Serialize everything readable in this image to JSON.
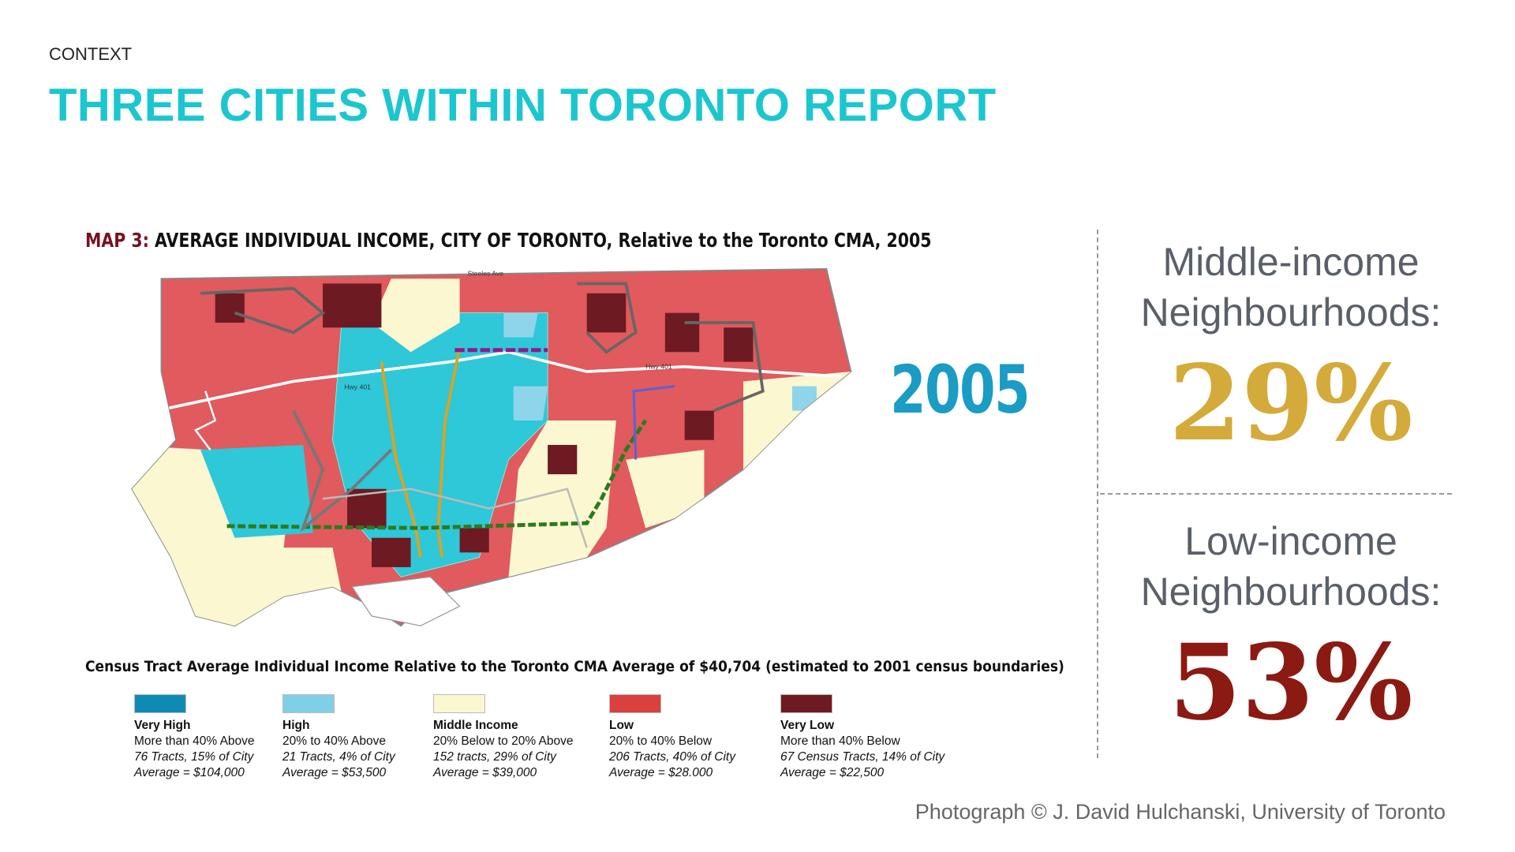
{
  "header": {
    "label": "CONTEXT",
    "title": "THREE CITIES WITHIN TORONTO REPORT"
  },
  "map": {
    "title_prefix": "MAP 3:",
    "title_main": "AVERAGE INDIVIDUAL INCOME, CITY OF TORONTO,",
    "title_suffix": "Relative to the Toronto CMA, 2005",
    "year": "2005",
    "street_labels": [
      "Steeles Ave",
      "Hwy 401",
      "Hwy 401"
    ],
    "legend": {
      "title": "Census Tract Average Individual Income Relative to the Toronto CMA Average of $40,704 (estimated to 2001 census boundaries)",
      "items": [
        {
          "name": "Very High",
          "description": "More than 40% Above",
          "count": "76 Tracts, 15% of City",
          "average": "Average = $104,000",
          "color": "#0e8bb5"
        },
        {
          "name": "High",
          "description": "20% to 40% Above",
          "count": "21 Tracts, 4% of City",
          "average": "Average = $53,500",
          "color": "#7fd0e6"
        },
        {
          "name": "Middle Income",
          "description": "20% Below to 20% Above",
          "count": "152 tracts, 29% of City",
          "average": "Average = $39,000",
          "color": "#fbf7d0"
        },
        {
          "name": "Low",
          "description": "20% to 40% Below",
          "count": "206 Tracts, 40% of City",
          "average": "Average = $28.000",
          "color": "#d9403e"
        },
        {
          "name": "Very Low",
          "description": "More than 40% Below",
          "count": "67 Census Tracts, 14% of City",
          "average": "Average = $22,500",
          "color": "#6e1a22"
        }
      ]
    }
  },
  "stats": [
    {
      "label_line1": "Middle-income",
      "label_line2": "Neighbourhoods:",
      "value": "29%"
    },
    {
      "label_line1": "Low-income",
      "label_line2": "Neighbourhoods:",
      "value": "53%"
    }
  ],
  "credit": "Photograph © J. David Hulchanski, University of Toronto"
}
